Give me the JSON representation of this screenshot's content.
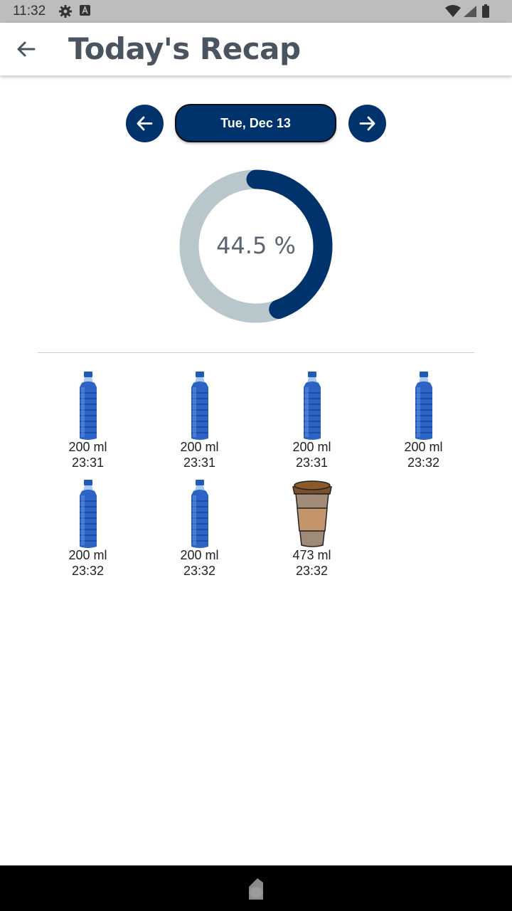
{
  "status_bar": {
    "time": "11:32"
  },
  "app_bar": {
    "title": "Today's Recap"
  },
  "date_nav": {
    "date": "Tue, Dec 13"
  },
  "progress": {
    "value": 44.5,
    "label": "44.5 %",
    "track_color": "#b8c7cc",
    "fill_color": "#00336b"
  },
  "drinks": [
    {
      "type": "water-bottle",
      "amount": "200 ml",
      "time": "23:31"
    },
    {
      "type": "water-bottle",
      "amount": "200 ml",
      "time": "23:31"
    },
    {
      "type": "water-bottle",
      "amount": "200 ml",
      "time": "23:31"
    },
    {
      "type": "water-bottle",
      "amount": "200 ml",
      "time": "23:32"
    },
    {
      "type": "water-bottle",
      "amount": "200 ml",
      "time": "23:32"
    },
    {
      "type": "water-bottle",
      "amount": "200 ml",
      "time": "23:32"
    },
    {
      "type": "coffee-cup",
      "amount": "473 ml",
      "time": "23:32"
    }
  ],
  "colors": {
    "primary": "#00336b",
    "title": "#4a5461",
    "bottle": "#2d63c4"
  },
  "icons": [
    "settings-icon",
    "keyboard-a-icon",
    "wifi-icon",
    "signal-icon",
    "battery-icon",
    "back-arrow-icon",
    "arrow-left-icon",
    "arrow-right-icon",
    "water-bottle-icon",
    "coffee-cup-icon",
    "home-icon"
  ]
}
